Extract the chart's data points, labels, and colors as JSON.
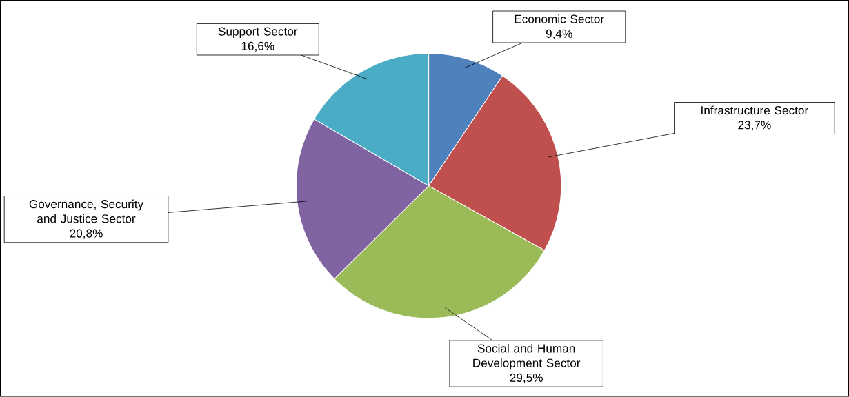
{
  "chart_data": {
    "type": "pie",
    "categories": [
      "Economic Sector",
      "Infrastructure Sector",
      "Social and Human Development Sector",
      "Governance, Security and Justice Sector",
      "Support Sector"
    ],
    "values": [
      9.4,
      23.7,
      29.5,
      20.8,
      16.6
    ],
    "colors": [
      "#4f81bd",
      "#c0504d",
      "#9bbb59",
      "#8064a2",
      "#4bacc6"
    ],
    "value_labels": [
      "9,4%",
      "23,7%",
      "29,5%",
      "20,8%",
      "16,6%"
    ]
  }
}
